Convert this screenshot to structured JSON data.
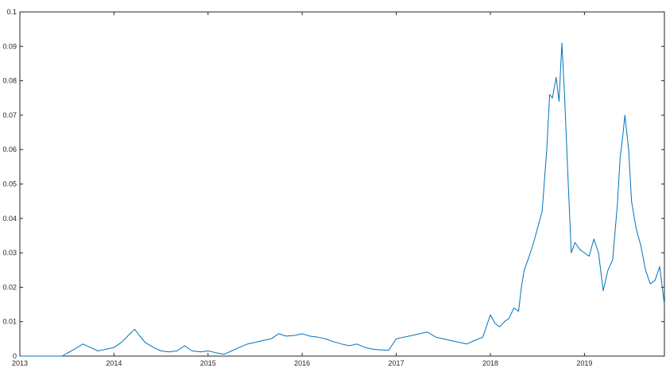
{
  "chart_data": {
    "type": "line",
    "title": "",
    "xlabel": "",
    "ylabel": "",
    "xlim": [
      2013,
      2019.85
    ],
    "ylim": [
      0,
      0.1
    ],
    "grid": false,
    "x_ticks": [
      "2013",
      "2014",
      "2015",
      "2016",
      "2017",
      "2018",
      "2019"
    ],
    "x_tick_values": [
      2013,
      2014,
      2015,
      2016,
      2017,
      2018,
      2019
    ],
    "y_ticks": [
      "0",
      "0.01",
      "0.02",
      "0.03",
      "0.04",
      "0.05",
      "0.06",
      "0.07",
      "0.08",
      "0.09",
      "0.1"
    ],
    "y_tick_values": [
      0,
      0.01,
      0.02,
      0.03,
      0.04,
      0.05,
      0.06,
      0.07,
      0.08,
      0.09,
      0.1
    ],
    "series": [
      {
        "color": "#0072bd",
        "x": [
          2013.0,
          2013.3,
          2013.45,
          2013.5,
          2013.58,
          2013.67,
          2013.75,
          2013.83,
          2013.92,
          2014.0,
          2014.08,
          2014.17,
          2014.22,
          2014.27,
          2014.33,
          2014.42,
          2014.5,
          2014.58,
          2014.67,
          2014.75,
          2014.83,
          2014.92,
          2015.0,
          2015.08,
          2015.17,
          2015.25,
          2015.33,
          2015.42,
          2015.5,
          2015.58,
          2015.67,
          2015.75,
          2015.83,
          2015.92,
          2016.0,
          2016.08,
          2016.17,
          2016.25,
          2016.33,
          2016.42,
          2016.5,
          2016.58,
          2016.67,
          2016.75,
          2016.83,
          2016.92,
          2017.0,
          2017.08,
          2017.17,
          2017.25,
          2017.33,
          2017.42,
          2017.5,
          2017.58,
          2017.67,
          2017.75,
          2017.83,
          2017.92,
          2018.0,
          2018.05,
          2018.1,
          2018.15,
          2018.2,
          2018.25,
          2018.3,
          2018.33,
          2018.36,
          2018.4,
          2018.45,
          2018.5,
          2018.55,
          2018.6,
          2018.63,
          2018.66,
          2018.7,
          2018.73,
          2018.76,
          2018.79,
          2018.82,
          2018.86,
          2018.9,
          2018.95,
          2019.0,
          2019.05,
          2019.1,
          2019.15,
          2019.2,
          2019.25,
          2019.3,
          2019.35,
          2019.38,
          2019.4,
          2019.43,
          2019.47,
          2019.5,
          2019.55,
          2019.6,
          2019.65,
          2019.7,
          2019.75,
          2019.8,
          2019.85
        ],
        "y": [
          0.0,
          0.0,
          0.0,
          0.0008,
          0.002,
          0.0035,
          0.0025,
          0.0015,
          0.002,
          0.0025,
          0.004,
          0.0065,
          0.0078,
          0.006,
          0.004,
          0.0025,
          0.0015,
          0.0012,
          0.0015,
          0.003,
          0.0015,
          0.0012,
          0.0015,
          0.001,
          0.0005,
          0.0015,
          0.0025,
          0.0035,
          0.004,
          0.0045,
          0.005,
          0.0065,
          0.0058,
          0.006,
          0.0065,
          0.0058,
          0.0055,
          0.005,
          0.0042,
          0.0035,
          0.003,
          0.0035,
          0.0025,
          0.002,
          0.0018,
          0.0017,
          0.005,
          0.0055,
          0.006,
          0.0065,
          0.007,
          0.0055,
          0.005,
          0.0045,
          0.004,
          0.0035,
          0.0045,
          0.0055,
          0.012,
          0.0095,
          0.0085,
          0.01,
          0.011,
          0.014,
          0.013,
          0.02,
          0.025,
          0.028,
          0.032,
          0.037,
          0.042,
          0.06,
          0.076,
          0.075,
          0.081,
          0.074,
          0.091,
          0.075,
          0.055,
          0.03,
          0.033,
          0.031,
          0.03,
          0.029,
          0.034,
          0.03,
          0.019,
          0.025,
          0.028,
          0.044,
          0.058,
          0.062,
          0.07,
          0.06,
          0.045,
          0.037,
          0.032,
          0.025,
          0.021,
          0.022,
          0.026,
          0.015
        ]
      }
    ]
  }
}
